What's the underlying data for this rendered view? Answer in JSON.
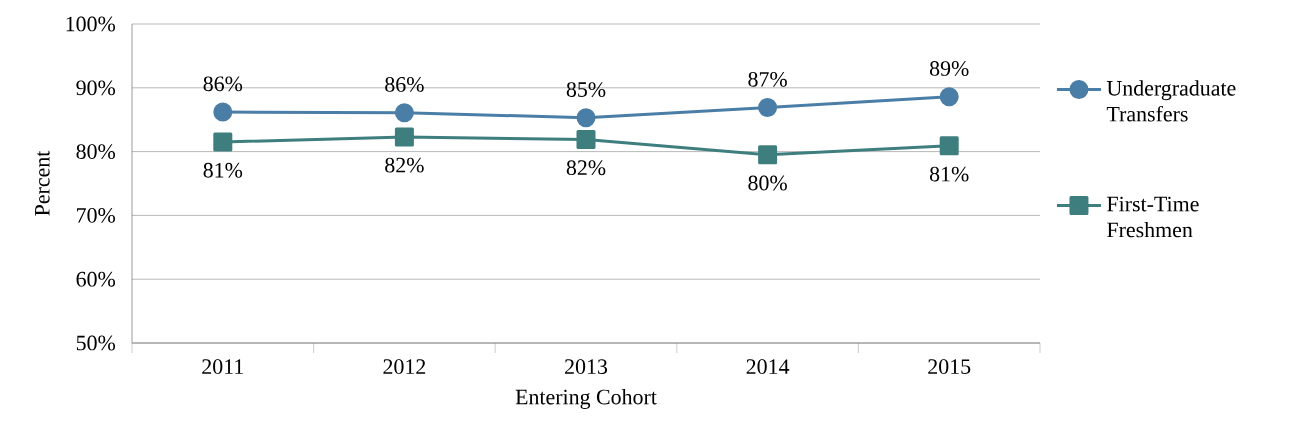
{
  "chart_data": {
    "type": "line",
    "xlabel": "Entering Cohort",
    "ylabel": "Percent",
    "categories": [
      "2011",
      "2012",
      "2013",
      "2014",
      "2015"
    ],
    "series": [
      {
        "name": "Undergraduate Transfers",
        "color": "#4a7ea6",
        "marker": "circle",
        "values": [
          86.2,
          86.1,
          85.3,
          86.9,
          88.6
        ],
        "value_labels": [
          "86%",
          "86%",
          "85%",
          "87%",
          "89%"
        ]
      },
      {
        "name": "First-Time Freshmen",
        "color": "#3e7e7e",
        "marker": "square",
        "values": [
          81.5,
          82.3,
          81.9,
          79.5,
          80.9
        ],
        "value_labels": [
          "81%",
          "82%",
          "82%",
          "80%",
          "81%"
        ]
      }
    ],
    "ylim": [
      50,
      100
    ],
    "yticks": [
      {
        "value": 50,
        "label": "50%"
      },
      {
        "value": 60,
        "label": "60%"
      },
      {
        "value": 70,
        "label": "70%"
      },
      {
        "value": 80,
        "label": "80%"
      },
      {
        "value": 90,
        "label": "90%"
      },
      {
        "value": 100,
        "label": "100%"
      }
    ],
    "grid": "y",
    "legend": "right"
  }
}
